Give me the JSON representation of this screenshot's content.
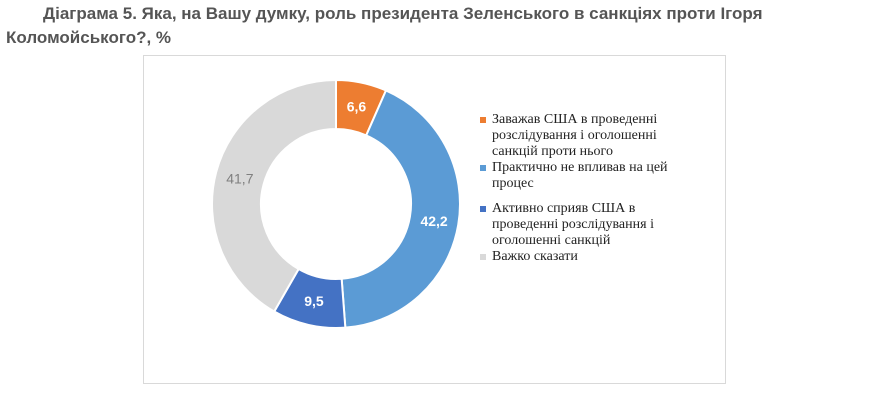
{
  "title_line1": "Діаграма 5.  Яка, на Вашу думку, роль президента Зеленського в санкціях проти Ігоря",
  "title_line2": "Коломойського?, %",
  "chart_data": {
    "type": "pie",
    "variant": "donut",
    "title": "Діаграма 5.  Яка, на Вашу думку, роль президента Зеленського в санкціях проти Ігоря Коломойського?, %",
    "legend_position": "right",
    "categories": [
      "Заважав США в проведенні розслідування і оголошенні санкцій проти нього",
      "Практично не впливав на цей процес",
      "Активно сприяв США в проведенні розслідування і оголошенні санкцій",
      "Важко сказати"
    ],
    "values": [
      6.6,
      42.2,
      9.5,
      41.7
    ],
    "value_labels": [
      "6,6",
      "42,2",
      "9,5",
      "41,7"
    ],
    "colors": [
      "#ed7d31",
      "#5b9bd5",
      "#4472c4",
      "#d9d9d9"
    ],
    "label_colors": [
      "#ffffff",
      "#ffffff",
      "#ffffff",
      "#7f7f7f"
    ]
  },
  "legend": [
    {
      "lines": [
        "Заважав США в проведенні",
        "розслідування і оголошенні",
        "санкцій проти нього"
      ],
      "color": "#ed7d31"
    },
    {
      "lines": [
        "Практично не впливав на цей",
        "процес"
      ],
      "color": "#5b9bd5"
    },
    {
      "lines": [
        "Активно сприяв США в",
        "проведенні розслідування і",
        "оголошенні санкцій"
      ],
      "color": "#4472c4"
    },
    {
      "lines": [
        "Важко сказати"
      ],
      "color": "#d9d9d9"
    }
  ]
}
